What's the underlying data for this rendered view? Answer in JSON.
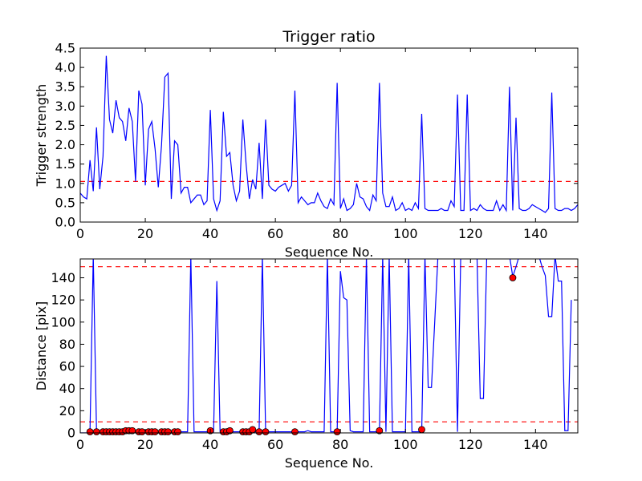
{
  "chart_data": [
    {
      "type": "line",
      "title": "Trigger ratio",
      "xlabel": "Sequence No.",
      "ylabel": "Trigger strength",
      "xlim": [
        0,
        153
      ],
      "ylim": [
        0,
        4.5
      ],
      "xticks": [
        "0",
        "20",
        "40",
        "60",
        "80",
        "100",
        "120",
        "140"
      ],
      "yticks": [
        "0.0",
        "0.5",
        "1.0",
        "1.5",
        "2.0",
        "2.5",
        "3.0",
        "3.5",
        "4.0",
        "4.5"
      ],
      "threshold": 1.05,
      "line_color": "#0000ff",
      "threshold_color": "#ff0000",
      "series": [
        {
          "values": [
            0.75,
            0.65,
            0.6,
            1.6,
            0.8,
            2.45,
            0.85,
            1.7,
            4.3,
            2.65,
            2.3,
            3.15,
            2.7,
            2.6,
            2.1,
            2.95,
            2.6,
            1.05,
            3.4,
            3.05,
            0.95,
            2.4,
            2.6,
            1.9,
            0.9,
            2.0,
            3.75,
            3.85,
            0.6,
            2.1,
            2.0,
            0.75,
            0.9,
            0.9,
            0.5,
            0.6,
            0.7,
            0.7,
            0.45,
            0.55,
            2.9,
            0.6,
            0.3,
            0.55,
            2.85,
            1.7,
            1.8,
            0.95,
            0.55,
            0.8,
            2.65,
            1.5,
            0.6,
            1.1,
            0.85,
            2.05,
            0.6,
            2.65,
            0.95,
            0.85,
            0.8,
            0.9,
            0.95,
            1.0,
            0.8,
            0.95,
            3.4,
            0.5,
            0.65,
            0.55,
            0.45,
            0.5,
            0.5,
            0.75,
            0.55,
            0.4,
            0.35,
            0.6,
            0.45,
            3.6,
            0.35,
            0.6,
            0.3,
            0.35,
            0.45,
            1.0,
            0.65,
            0.6,
            0.4,
            0.3,
            0.7,
            0.55,
            3.6,
            0.75,
            0.4,
            0.4,
            0.65,
            0.3,
            0.35,
            0.5,
            0.3,
            0.35,
            0.3,
            0.5,
            0.35,
            2.8,
            0.35,
            0.3,
            0.3,
            0.3,
            0.3,
            0.35,
            0.3,
            0.3,
            0.55,
            0.4,
            3.3,
            0.3,
            0.3,
            3.3,
            0.3,
            0.35,
            0.3,
            0.45,
            0.35,
            0.3,
            0.3,
            0.3,
            0.55,
            0.3,
            0.45,
            0.3,
            3.5,
            0.3,
            2.7,
            0.35,
            0.3,
            0.3,
            0.35,
            0.45,
            0.4,
            0.35,
            0.3,
            0.25,
            0.35,
            3.35,
            0.35,
            0.3,
            0.3,
            0.35,
            0.35,
            0.3,
            0.35,
            0.45,
            0.35
          ]
        }
      ]
    },
    {
      "type": "line",
      "xlabel": "Sequence No.",
      "ylabel": "Distance [pix]",
      "xlim": [
        0,
        153
      ],
      "ylim": [
        0,
        157
      ],
      "xticks": [
        "0",
        "20",
        "40",
        "60",
        "80",
        "100",
        "120",
        "140"
      ],
      "yticks": [
        "0",
        "20",
        "40",
        "60",
        "80",
        "100",
        "120",
        "140"
      ],
      "thresholds": [
        10,
        150
      ],
      "line_color": "#0000ff",
      "marker_color": "#ff0000",
      "series": [
        {
          "values": [
            0,
            0,
            0,
            2,
            160,
            2,
            1,
            1,
            1,
            1,
            1,
            1,
            1,
            1,
            1,
            1,
            1,
            1,
            1,
            1,
            1,
            1,
            1,
            1,
            1,
            1,
            1,
            1,
            1,
            1,
            1,
            1,
            1,
            1,
            160,
            1,
            1,
            1,
            1,
            1,
            1,
            1,
            137,
            1,
            1,
            1,
            1,
            1,
            1,
            1,
            1,
            1,
            1,
            1,
            1,
            1,
            160,
            1,
            1,
            1,
            1,
            1,
            1,
            1,
            1,
            1,
            1,
            1,
            1,
            1,
            2,
            1,
            1,
            1,
            1,
            1,
            160,
            1,
            1,
            1,
            146,
            122,
            120,
            2,
            1,
            1,
            1,
            1,
            160,
            1,
            1,
            1,
            1,
            160,
            1,
            160,
            1,
            1,
            1,
            1,
            1,
            160,
            1,
            1,
            1,
            1,
            160,
            41,
            41,
            100,
            160,
            160,
            160,
            160,
            160,
            160,
            1,
            160,
            160,
            160,
            160,
            160,
            160,
            31,
            31,
            160,
            160,
            160,
            160,
            160,
            160,
            160,
            160,
            141,
            150,
            160,
            160,
            160,
            160,
            160,
            160,
            160,
            150,
            142,
            105,
            105,
            160,
            137,
            137,
            2,
            2,
            120
          ]
        }
      ],
      "markers": {
        "x": [
          3,
          5,
          7,
          8,
          9,
          10,
          11,
          12,
          13,
          14,
          15,
          16,
          18,
          19,
          21,
          22,
          23,
          25,
          26,
          27,
          29,
          30,
          40,
          44,
          45,
          46,
          50,
          51,
          52,
          53,
          55,
          57,
          66,
          79,
          92,
          105,
          133
        ],
        "y": [
          1,
          1,
          1,
          1,
          1,
          1,
          1,
          1,
          1,
          2,
          2,
          2,
          1,
          1,
          1,
          1,
          1,
          1,
          1,
          1,
          1,
          1,
          2,
          1,
          1,
          2,
          1,
          1,
          1,
          3,
          1,
          1,
          1,
          1,
          2,
          3,
          140
        ]
      }
    }
  ]
}
